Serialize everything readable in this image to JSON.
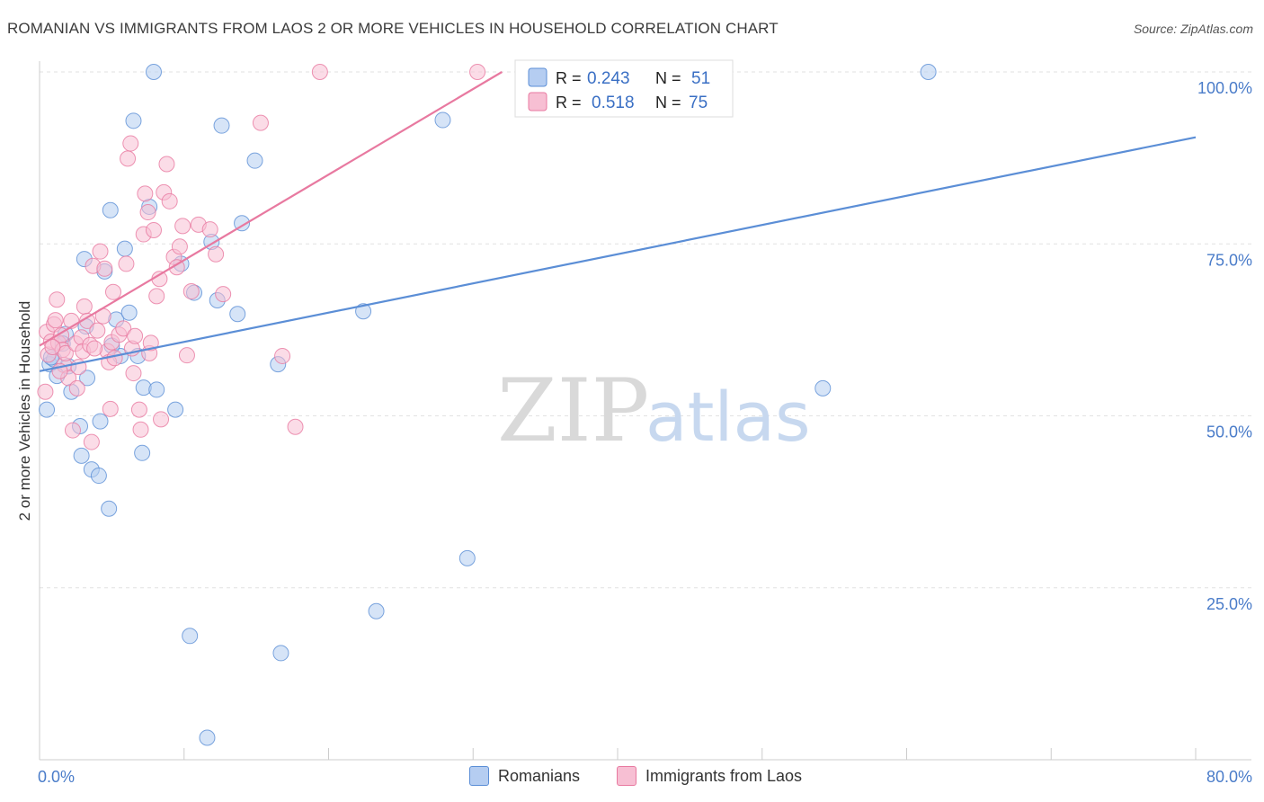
{
  "title": "ROMANIAN VS IMMIGRANTS FROM LAOS 2 OR MORE VEHICLES IN HOUSEHOLD CORRELATION CHART",
  "source": "Source: ZipAtlas.com",
  "watermark": {
    "zip": "ZIP",
    "atlas": "atlas"
  },
  "chart_data": {
    "type": "scatter",
    "xlabel": "",
    "ylabel": "2 or more Vehicles in Household",
    "xlim": [
      0,
      80
    ],
    "ylim": [
      0,
      100
    ],
    "x_tick_labels": [
      "0.0%",
      "80.0%"
    ],
    "y_ticks": [
      25,
      50,
      75,
      100
    ],
    "y_tick_labels": [
      "25.0%",
      "50.0%",
      "75.0%",
      "100.0%"
    ],
    "grid": true,
    "legend": {
      "position": "top-center",
      "entries": [
        {
          "r_label": "R =",
          "r_value": "0.243",
          "n_label": "N =",
          "n_value": "51"
        },
        {
          "r_label": "R =",
          "r_value": "0.518",
          "n_label": "N =",
          "n_value": "75"
        }
      ]
    },
    "series": [
      {
        "name": "Romanians",
        "color": "#5b8ed6",
        "fill": "#b5cdf1",
        "r": 0.243,
        "n": 51,
        "trend": {
          "x0": 0,
          "y0": 56.5,
          "x1": 80,
          "y1": 90.5
        },
        "points": [
          [
            0.5,
            50.9
          ],
          [
            0.7,
            57.5
          ],
          [
            1.0,
            58.2
          ],
          [
            1.2,
            55.8
          ],
          [
            1.8,
            61.9
          ],
          [
            2.0,
            57.2
          ],
          [
            2.8,
            48.5
          ],
          [
            2.9,
            44.2
          ],
          [
            3.1,
            72.8
          ],
          [
            3.3,
            55.5
          ],
          [
            3.6,
            42.2
          ],
          [
            4.1,
            41.3
          ],
          [
            4.2,
            49.2
          ],
          [
            4.5,
            71.0
          ],
          [
            4.8,
            36.5
          ],
          [
            4.9,
            79.9
          ],
          [
            5.3,
            64.0
          ],
          [
            5.6,
            58.7
          ],
          [
            5.9,
            74.3
          ],
          [
            6.2,
            65.0
          ],
          [
            6.5,
            92.9
          ],
          [
            6.8,
            58.7
          ],
          [
            7.1,
            44.6
          ],
          [
            7.2,
            54.1
          ],
          [
            7.6,
            80.4
          ],
          [
            7.9,
            100.0
          ],
          [
            8.1,
            53.8
          ],
          [
            9.4,
            50.9
          ],
          [
            9.8,
            72.1
          ],
          [
            10.4,
            18.0
          ],
          [
            10.7,
            67.9
          ],
          [
            11.6,
            3.2
          ],
          [
            11.9,
            75.3
          ],
          [
            12.3,
            66.8
          ],
          [
            12.6,
            92.2
          ],
          [
            13.7,
            64.8
          ],
          [
            14.0,
            78.0
          ],
          [
            14.9,
            87.1
          ],
          [
            16.5,
            57.5
          ],
          [
            16.7,
            15.5
          ],
          [
            22.4,
            65.2
          ],
          [
            23.3,
            21.6
          ],
          [
            27.9,
            93.0
          ],
          [
            29.6,
            29.3
          ],
          [
            54.2,
            54.0
          ],
          [
            61.5,
            100.0
          ],
          [
            0.8,
            58.5
          ],
          [
            1.6,
            60.5
          ],
          [
            3.2,
            63.0
          ],
          [
            2.2,
            53.5
          ],
          [
            5.0,
            60.2
          ]
        ]
      },
      {
        "name": "Immigrants from Laos",
        "color": "#e879a0",
        "fill": "#f7bfd3",
        "r": 0.518,
        "n": 75,
        "trend": {
          "x0": 0,
          "y0": 60.2,
          "x1": 32,
          "y1": 100.0
        },
        "points": [
          [
            0.4,
            53.5
          ],
          [
            0.5,
            62.2
          ],
          [
            0.6,
            58.9
          ],
          [
            0.8,
            60.8
          ],
          [
            1.0,
            63.3
          ],
          [
            1.1,
            63.9
          ],
          [
            1.2,
            66.9
          ],
          [
            1.3,
            60.6
          ],
          [
            1.5,
            61.7
          ],
          [
            1.6,
            59.6
          ],
          [
            1.7,
            57.4
          ],
          [
            1.8,
            59.1
          ],
          [
            2.0,
            55.5
          ],
          [
            2.2,
            63.8
          ],
          [
            2.3,
            47.9
          ],
          [
            2.5,
            60.5
          ],
          [
            2.7,
            57.1
          ],
          [
            2.9,
            61.4
          ],
          [
            3.0,
            59.4
          ],
          [
            3.1,
            65.9
          ],
          [
            3.3,
            63.8
          ],
          [
            3.5,
            60.3
          ],
          [
            3.6,
            46.2
          ],
          [
            3.7,
            71.8
          ],
          [
            4.0,
            62.4
          ],
          [
            4.2,
            73.9
          ],
          [
            4.4,
            64.5
          ],
          [
            4.5,
            71.4
          ],
          [
            4.7,
            59.4
          ],
          [
            4.8,
            57.8
          ],
          [
            4.9,
            51.0
          ],
          [
            5.0,
            60.7
          ],
          [
            5.1,
            68.0
          ],
          [
            5.2,
            58.4
          ],
          [
            5.5,
            61.8
          ],
          [
            5.8,
            62.7
          ],
          [
            6.0,
            72.1
          ],
          [
            6.1,
            87.4
          ],
          [
            6.3,
            89.6
          ],
          [
            6.4,
            59.8
          ],
          [
            6.6,
            61.6
          ],
          [
            6.9,
            50.9
          ],
          [
            7.0,
            48.0
          ],
          [
            7.2,
            76.4
          ],
          [
            7.3,
            82.3
          ],
          [
            7.5,
            79.6
          ],
          [
            7.6,
            59.1
          ],
          [
            7.7,
            60.6
          ],
          [
            7.9,
            77.0
          ],
          [
            8.1,
            67.4
          ],
          [
            8.3,
            69.9
          ],
          [
            8.4,
            49.5
          ],
          [
            8.6,
            82.5
          ],
          [
            8.8,
            86.6
          ],
          [
            9.0,
            81.2
          ],
          [
            9.3,
            73.1
          ],
          [
            9.5,
            71.6
          ],
          [
            9.7,
            74.6
          ],
          [
            9.9,
            77.6
          ],
          [
            10.2,
            58.8
          ],
          [
            10.5,
            68.1
          ],
          [
            11.0,
            77.8
          ],
          [
            11.8,
            77.1
          ],
          [
            12.2,
            73.5
          ],
          [
            12.7,
            67.7
          ],
          [
            15.3,
            92.6
          ],
          [
            16.8,
            58.7
          ],
          [
            17.7,
            48.4
          ],
          [
            19.4,
            100.0
          ],
          [
            30.3,
            100.0
          ],
          [
            0.9,
            60.0
          ],
          [
            1.4,
            56.5
          ],
          [
            2.6,
            54.0
          ],
          [
            3.8,
            59.8
          ],
          [
            6.5,
            56.2
          ]
        ]
      }
    ]
  }
}
